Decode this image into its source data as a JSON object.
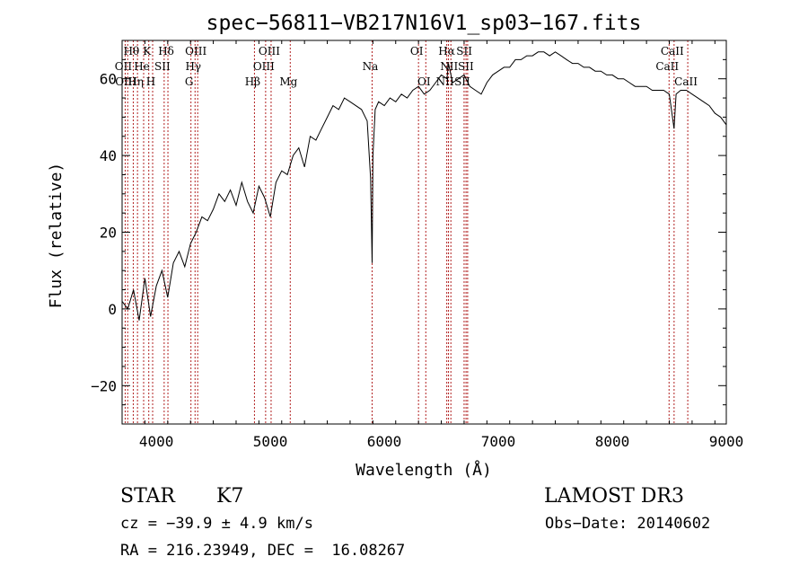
{
  "chart_data": {
    "type": "line",
    "title": "spec−56811−VB217N16V1_sp03−167.fits",
    "xlabel": "Wavelength (Å)",
    "ylabel": "Flux (relative)",
    "xlim": [
      3700,
      9000
    ],
    "ylim": [
      -30,
      70
    ],
    "x_ticks": [
      4000,
      5000,
      6000,
      7000,
      8000,
      9000
    ],
    "x_tick_labels": [
      "4000",
      "5000",
      "6000",
      "7000",
      "8000",
      "9000"
    ],
    "y_ticks": [
      -20,
      0,
      20,
      40,
      60
    ],
    "y_tick_labels": [
      "−20",
      "0",
      "20",
      "40",
      "60"
    ],
    "grid": false,
    "series": [
      {
        "name": "flux",
        "x": [
          3700,
          3750,
          3800,
          3850,
          3900,
          3950,
          4000,
          4050,
          4100,
          4150,
          4200,
          4250,
          4300,
          4350,
          4400,
          4450,
          4500,
          4550,
          4600,
          4650,
          4700,
          4750,
          4800,
          4850,
          4900,
          4950,
          5000,
          5050,
          5100,
          5150,
          5200,
          5250,
          5300,
          5350,
          5400,
          5450,
          5500,
          5550,
          5600,
          5650,
          5700,
          5750,
          5800,
          5850,
          5880,
          5893,
          5900,
          5920,
          5950,
          6000,
          6050,
          6100,
          6150,
          6200,
          6250,
          6300,
          6350,
          6400,
          6450,
          6500,
          6550,
          6563,
          6600,
          6650,
          6700,
          6750,
          6800,
          6850,
          6900,
          6950,
          7000,
          7050,
          7100,
          7150,
          7200,
          7250,
          7300,
          7350,
          7400,
          7450,
          7500,
          7550,
          7600,
          7650,
          7700,
          7750,
          7800,
          7850,
          7900,
          7950,
          8000,
          8050,
          8100,
          8150,
          8200,
          8250,
          8300,
          8350,
          8400,
          8450,
          8500,
          8542,
          8560,
          8600,
          8650,
          8700,
          8750,
          8800,
          8850,
          8900,
          8950,
          9000
        ],
        "y": [
          2,
          0,
          5,
          -3,
          8,
          -2,
          6,
          10,
          3,
          12,
          15,
          11,
          17,
          20,
          24,
          23,
          26,
          30,
          28,
          31,
          27,
          33,
          28,
          25,
          32,
          29,
          24,
          33,
          36,
          35,
          40,
          42,
          37,
          45,
          44,
          47,
          50,
          53,
          52,
          55,
          54,
          53,
          52,
          49,
          34,
          12,
          40,
          52,
          54,
          53,
          55,
          54,
          56,
          55,
          57,
          58,
          56,
          57,
          59,
          61,
          60,
          64,
          59,
          60,
          61,
          58,
          57,
          56,
          59,
          61,
          62,
          63,
          63,
          65,
          65,
          66,
          66,
          67,
          67,
          66,
          67,
          66,
          65,
          64,
          64,
          63,
          63,
          62,
          62,
          61,
          61,
          60,
          60,
          59,
          58,
          58,
          58,
          57,
          57,
          57,
          56,
          47,
          56,
          57,
          57,
          56,
          55,
          54,
          53,
          51,
          50,
          48
        ]
      }
    ],
    "lines": [
      {
        "label": "Hθ",
        "x": 3798,
        "row": 1
      },
      {
        "label": "OII",
        "x": 3727,
        "row": 2
      },
      {
        "label": "OIII",
        "x": 3749,
        "row": 3
      },
      {
        "label": "K",
        "x": 3934,
        "row": 1
      },
      {
        "label": "He",
        "x": 3889,
        "row": 2
      },
      {
        "label": "Hη",
        "x": 3835,
        "row": 3
      },
      {
        "label": "Hδ",
        "x": 4102,
        "row": 1
      },
      {
        "label": "SII",
        "x": 4069,
        "row": 2
      },
      {
        "label": "H",
        "x": 3968,
        "row": 3
      },
      {
        "label": "OIII",
        "x": 4363,
        "row": 1
      },
      {
        "label": "Hγ",
        "x": 4340,
        "row": 2
      },
      {
        "label": "G",
        "x": 4304,
        "row": 3
      },
      {
        "label": "OIII",
        "x": 5007,
        "row": 1
      },
      {
        "label": "OIII",
        "x": 4959,
        "row": 2
      },
      {
        "label": "Hβ",
        "x": 4861,
        "row": 3
      },
      {
        "label": "Mg",
        "x": 5175,
        "row": 3
      },
      {
        "label": "Na",
        "x": 5893,
        "row": 2
      },
      {
        "label": "OI",
        "x": 6300,
        "row": 1
      },
      {
        "label": "OI",
        "x": 6364,
        "row": 3
      },
      {
        "label": "Hα",
        "x": 6563,
        "row": 1
      },
      {
        "label": "SII",
        "x": 6717,
        "row": 1
      },
      {
        "label": "NII",
        "x": 6584,
        "row": 2
      },
      {
        "label": "SII",
        "x": 6731,
        "row": 2
      },
      {
        "label": "NII",
        "x": 6548,
        "row": 3
      },
      {
        "label": "SII",
        "x": 6700,
        "row": 3
      },
      {
        "label": "CaII",
        "x": 8542,
        "row": 1
      },
      {
        "label": "CaII",
        "x": 8498,
        "row": 2
      },
      {
        "label": "CaII",
        "x": 8662,
        "row": 3
      }
    ],
    "colors": {
      "spectrum": "#000000",
      "line_marker": "#b22222",
      "axes": "#000000"
    }
  },
  "info": {
    "object_class": "STAR",
    "subclass": "K7",
    "survey": "LAMOST DR3",
    "redshift": "cz = −39.9 ± 4.9 km/s",
    "obs_date": "Obs−Date: 20140602",
    "coords": "RA = 216.23949, DEC =  16.08267"
  }
}
